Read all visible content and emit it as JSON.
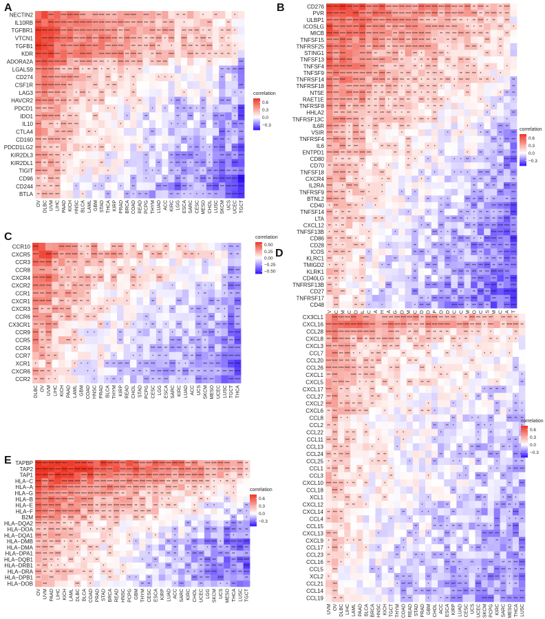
{
  "colors": {
    "high": "#ee3322",
    "mid": "#ffffff",
    "low": "#3311ff",
    "star": "#111111"
  },
  "chart_data": [
    {
      "type": "heatmap",
      "panel": "A",
      "legend_title": "correlation",
      "legend_ticks": [
        "0.6",
        "0.3",
        "0.0",
        "−0.3"
      ],
      "legend_tick_values": [
        0.6,
        0.3,
        0.0,
        -0.3
      ],
      "vlim": [
        -0.5,
        0.75
      ],
      "rows": [
        "NECTIN2",
        "IL10RB",
        "TGFBR1",
        "VTCN1",
        "TGFB1",
        "KDR",
        "ADORA2A",
        "LGALS9",
        "CD274",
        "CSF1R",
        "LAG3",
        "HAVCR2",
        "PDCD1",
        "IDO1",
        "IL10",
        "CTLA4",
        "CD160",
        "PDCD1LG2",
        "KIR2DL3",
        "KIR2DL1",
        "TIGIT",
        "CD96",
        "CD244",
        "BTLA"
      ],
      "cols": [
        "OV",
        "DLBC",
        "UVM",
        "LIHC",
        "PAAD",
        "KICH",
        "HNSC",
        "BLCA",
        "LAML",
        "GBM",
        "STAD",
        "THCA",
        "KIRP",
        "PRAD",
        "BRCA",
        "COAD",
        "READ",
        "PCPG",
        "THYM",
        "LUAD",
        "ACC",
        "KIRC",
        "LGG",
        "ESCA",
        "SARC",
        "CESC",
        "MESO",
        "CHOL",
        "LUSC",
        "SKCM",
        "UCS",
        "UCEC",
        "TGCT"
      ],
      "row_base": [
        0.3,
        0.3,
        0.3,
        0.3,
        0.3,
        0.3,
        0.2,
        0.1,
        0.1,
        0.1,
        0.1,
        0.05,
        0.0,
        0.0,
        0.0,
        0.0,
        0.0,
        0.0,
        -0.05,
        -0.05,
        -0.05,
        -0.1,
        -0.1,
        -0.1
      ],
      "col_base": [
        0.35,
        0.3,
        0.3,
        0.25,
        0.2,
        0.2,
        0.1,
        0.1,
        0.1,
        0.1,
        0.1,
        0.05,
        0.05,
        0.05,
        0.0,
        0.0,
        0.0,
        -0.05,
        -0.05,
        -0.05,
        -0.05,
        -0.1,
        -0.15,
        -0.1,
        -0.1,
        -0.1,
        -0.1,
        -0.1,
        -0.15,
        -0.2,
        -0.15,
        -0.2,
        -0.3
      ]
    },
    {
      "type": "heatmap",
      "panel": "B",
      "legend_title": "correlation",
      "legend_ticks": [
        "0.6",
        "0.3",
        "0.0",
        "−0.3"
      ],
      "legend_tick_values": [
        0.6,
        0.3,
        0.0,
        -0.3
      ],
      "vlim": [
        -0.5,
        0.75
      ],
      "rows": [
        "CD276",
        "PVR",
        "ULBP1",
        "ICOSLG",
        "MICB",
        "TNFSF15",
        "TNFRSF25",
        "STING1",
        "TNFSF13",
        "TNFSF4",
        "TNFSF9",
        "TNFRSF14",
        "TNFRSF18",
        "NT5E",
        "RAET1E",
        "TNFRSF8",
        "HHLA2",
        "TNFRSF13C",
        "IL6R",
        "VSIR",
        "TNFRSF4",
        "IL6",
        "ENTPD1",
        "CD80",
        "CD70",
        "TNFSF18",
        "CXCR4",
        "IL2RA",
        "TNFRSF9",
        "BTNL2",
        "CD40",
        "TNFSF14",
        "LTA",
        "CXCL12",
        "TNFSF13B",
        "CD86",
        "CD28",
        "ICOS",
        "KLRC1",
        "TMIGD2",
        "KLRK1",
        "CD40LG",
        "TNFRSF13B",
        "CD27",
        "TNFRSF17",
        "CD48"
      ],
      "cols": [
        "OV",
        "DLBC",
        "UVM",
        "LIHC",
        "PAAD",
        "LAML",
        "HNSC",
        "BRCA",
        "KICH",
        "BLCA",
        "PCPG",
        "PRAD",
        "GBM",
        "ACC",
        "READ",
        "STAD",
        "KIRP",
        "COAD",
        "LUAD",
        "CESC",
        "SARC",
        "THYM",
        "MESO",
        "KIRC",
        "UCS",
        "SKCM",
        "LUSC",
        "THCA",
        "TGCT"
      ],
      "row_base": [
        0.4,
        0.35,
        0.3,
        0.3,
        0.3,
        0.25,
        0.25,
        0.2,
        0.2,
        0.2,
        0.2,
        0.2,
        0.15,
        0.15,
        0.15,
        0.1,
        0.1,
        0.1,
        0.05,
        0.05,
        0.05,
        0.05,
        0.05,
        0.0,
        0.0,
        0.0,
        0.0,
        0.0,
        -0.05,
        -0.05,
        -0.05,
        -0.05,
        -0.05,
        -0.05,
        -0.1,
        -0.1,
        -0.1,
        -0.1,
        -0.1,
        -0.1,
        -0.1,
        -0.1,
        -0.15,
        -0.15,
        -0.15,
        -0.15
      ],
      "col_base": [
        0.3,
        0.25,
        0.25,
        0.2,
        0.2,
        0.2,
        0.1,
        0.1,
        0.1,
        0.05,
        0.05,
        0.05,
        0.05,
        0.0,
        0.0,
        0.0,
        0.0,
        -0.05,
        -0.05,
        -0.05,
        -0.05,
        -0.05,
        -0.1,
        -0.1,
        -0.1,
        -0.15,
        -0.15,
        -0.2,
        -0.25
      ]
    },
    {
      "type": "heatmap",
      "panel": "C",
      "legend_title": "correlation",
      "legend_ticks": [
        "0.50",
        "0.25",
        "0.00",
        "−0.25",
        "−0.50"
      ],
      "legend_tick_values": [
        0.5,
        0.25,
        0.0,
        -0.25,
        -0.5
      ],
      "vlim": [
        -0.6,
        0.6
      ],
      "rows": [
        "CCR10",
        "CXCR5",
        "CCR3",
        "CCR8",
        "CXCR4",
        "CXCR2",
        "CCR1",
        "CXCR1",
        "CXCR3",
        "CCR6",
        "CX3CR1",
        "CCR9",
        "CCR5",
        "CCR4",
        "CCR7",
        "XCR1",
        "CXCR6",
        "CCR2"
      ],
      "cols": [
        "DLBC",
        "OV",
        "UVM",
        "LIHC",
        "KICH",
        "PAAD",
        "LAML",
        "GBM",
        "COAD",
        "HNSC",
        "PRAD",
        "BLCA",
        "THYM",
        "KIRP",
        "READ",
        "CHOL",
        "STAD",
        "PCPG",
        "CESC",
        "LGG",
        "ESCA",
        "SARC",
        "KIRC",
        "LUAD",
        "ACC",
        "UCS",
        "SKCM",
        "MESO",
        "UCEC",
        "LUSC",
        "TGCT",
        "THCA"
      ],
      "row_base": [
        0.15,
        0.2,
        0.1,
        0.1,
        0.15,
        0.05,
        0.05,
        0.0,
        0.0,
        0.0,
        0.0,
        -0.05,
        -0.05,
        -0.05,
        -0.05,
        -0.1,
        -0.1,
        -0.1
      ],
      "col_base": [
        0.3,
        0.25,
        0.25,
        0.2,
        0.15,
        0.15,
        0.1,
        0.05,
        0.05,
        0.05,
        0.05,
        0.0,
        0.0,
        0.0,
        0.0,
        0.0,
        -0.05,
        -0.05,
        -0.05,
        -0.05,
        -0.1,
        -0.1,
        -0.1,
        -0.1,
        -0.1,
        -0.15,
        -0.15,
        -0.15,
        -0.15,
        -0.2,
        -0.3,
        -0.3
      ]
    },
    {
      "type": "heatmap",
      "panel": "D",
      "legend_title": "correlation",
      "legend_ticks": [
        "0.6",
        "0.3",
        "0.0",
        "−0.3"
      ],
      "legend_tick_values": [
        0.6,
        0.3,
        0.0,
        -0.3
      ],
      "vlim": [
        -0.5,
        0.75
      ],
      "rows": [
        "CX3CL1",
        "CXCL16",
        "CCL28",
        "CXCL8",
        "CXCL3",
        "CCL7",
        "CCL20",
        "CCL26",
        "CXCL1",
        "CXCL5",
        "CXCL17",
        "CCL27",
        "CXCL2",
        "CXCL6",
        "CCL8",
        "CCL2",
        "CCL22",
        "CCL11",
        "CCL13",
        "CCL24",
        "CCL25",
        "CCL1",
        "CCL3",
        "CXCL10",
        "CCL18",
        "XCL1",
        "CXCL12",
        "CXCL14",
        "CCL4",
        "CCL15",
        "CXCL13",
        "CXCL9",
        "CCL17",
        "CCL23",
        "CCL16",
        "CCL5",
        "XCL2",
        "CCL21",
        "CCL14",
        "CCL19"
      ],
      "cols": [
        "UVM",
        "OV",
        "DLBC",
        "LIHC",
        "LAML",
        "PAAD",
        "BLCA",
        "BRCA",
        "HNSC",
        "KICH",
        "TGCT",
        "THYM",
        "COAD",
        "READ",
        "STAD",
        "PRAD",
        "GBM",
        "CHOL",
        "ACC",
        "ESCA",
        "KIRP",
        "LUAD",
        "CESC",
        "UCS",
        "UCEC",
        "SKCM",
        "PCPG",
        "KIRC",
        "SARC",
        "MESO",
        "THCA",
        "LUSC"
      ],
      "row_base": [
        0.3,
        0.35,
        0.2,
        0.15,
        0.1,
        0.1,
        0.1,
        0.1,
        0.1,
        0.1,
        0.05,
        0.05,
        0.05,
        0.05,
        0.0,
        0.0,
        0.0,
        0.0,
        0.0,
        0.0,
        0.0,
        0.0,
        0.0,
        0.0,
        0.0,
        0.0,
        -0.05,
        -0.05,
        -0.05,
        -0.05,
        -0.05,
        -0.05,
        -0.05,
        -0.05,
        -0.05,
        -0.1,
        -0.1,
        -0.1,
        -0.1,
        -0.1
      ],
      "col_base": [
        0.2,
        0.25,
        0.15,
        0.15,
        0.1,
        0.1,
        0.05,
        0.05,
        0.05,
        0.05,
        0.05,
        0.0,
        0.0,
        0.0,
        0.0,
        0.0,
        0.0,
        -0.05,
        -0.05,
        -0.05,
        -0.05,
        -0.05,
        -0.05,
        -0.05,
        -0.1,
        -0.1,
        -0.1,
        -0.1,
        -0.1,
        -0.1,
        -0.15,
        -0.15
      ]
    },
    {
      "type": "heatmap",
      "panel": "E",
      "legend_title": "correlation",
      "legend_ticks": [
        "0.6",
        "0.3",
        "0.0",
        "−0.3"
      ],
      "legend_tick_values": [
        0.6,
        0.3,
        0.0,
        -0.3
      ],
      "vlim": [
        -0.5,
        0.75
      ],
      "rows": [
        "TAPBP",
        "TAP2",
        "TAP1",
        "HLA−C",
        "HLA−A",
        "HLA−G",
        "HLA−B",
        "HLA−E",
        "HLA−F",
        "B2M",
        "HLA−DQA2",
        "HLA−DOA",
        "HLA−DQA1",
        "HLA−DMB",
        "HLA−DMA",
        "HLA−DPA1",
        "HLA−DQB1",
        "HLA−DRB1",
        "HLA−DRA",
        "HLA−DPB1",
        "HLA−DOB"
      ],
      "cols": [
        "OV",
        "UVM",
        "PAAD",
        "LIHC",
        "KICH",
        "LAML",
        "DLBC",
        "BLCA",
        "COAD",
        "PRAD",
        "STAD",
        "BRCA",
        "READ",
        "HNSC",
        "PCPG",
        "GBM",
        "THYM",
        "CESC",
        "ESCA",
        "KIRP",
        "LUAD",
        "ACC",
        "SARC",
        "KIRC",
        "CHOL",
        "UCEC",
        "LGG",
        "SKCM",
        "UCS",
        "MESO",
        "THCA",
        "LUSC",
        "TGCT"
      ],
      "row_base": [
        0.5,
        0.5,
        0.4,
        0.3,
        0.3,
        0.2,
        0.2,
        0.15,
        0.15,
        0.1,
        0.0,
        0.0,
        0.0,
        -0.05,
        -0.05,
        -0.05,
        -0.05,
        -0.05,
        -0.05,
        -0.05,
        -0.05
      ],
      "col_base": [
        0.3,
        0.25,
        0.25,
        0.25,
        0.2,
        0.2,
        0.2,
        0.15,
        0.15,
        0.1,
        0.1,
        0.1,
        0.1,
        0.05,
        0.05,
        0.05,
        0.0,
        0.0,
        0.0,
        -0.05,
        -0.05,
        -0.05,
        -0.05,
        -0.1,
        -0.1,
        -0.1,
        -0.15,
        -0.15,
        -0.15,
        -0.2,
        -0.2,
        -0.2,
        -0.25
      ]
    }
  ]
}
